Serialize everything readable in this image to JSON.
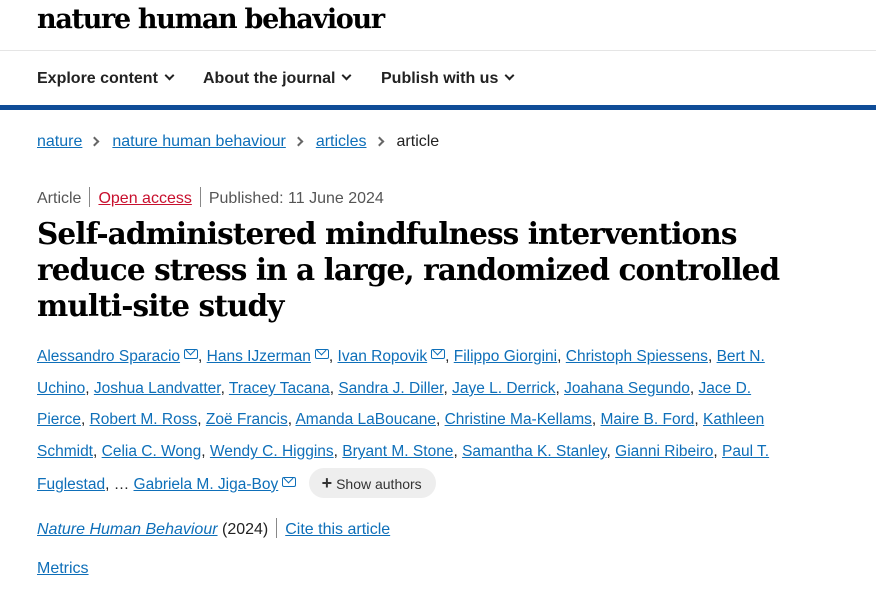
{
  "header": {
    "logo": "nature human behaviour"
  },
  "nav": [
    {
      "label": "Explore content"
    },
    {
      "label": "About the journal"
    },
    {
      "label": "Publish with us"
    }
  ],
  "breadcrumbs": {
    "items": [
      "nature",
      "nature human behaviour",
      "articles"
    ],
    "current": "article"
  },
  "article": {
    "type": "Article",
    "access": "Open access",
    "published": "Published: 11 June 2024",
    "title": "Self-administered mindfulness interventions reduce stress in a large, randomized controlled multi-site study",
    "authors": [
      "Alessandro Sparacio",
      "Hans IJzerman",
      "Ivan Ropovik",
      "Filippo Giorgini",
      "Christoph Spiessens",
      "Bert N. Uchino",
      "Joshua Landvatter",
      "Tracey Tacana",
      "Sandra J. Diller",
      "Jaye L. Derrick",
      "Joahana Segundo",
      "Jace D. Pierce",
      "Robert M. Ross",
      "Zoë Francis",
      "Amanda LaBoucane",
      "Christine Ma-Kellams",
      "Maire B. Ford",
      "Kathleen Schmidt",
      "Celia C. Wong",
      "Wendy C. Higgins",
      "Bryant M. Stone",
      "Samantha K. Stanley",
      "Gianni Ribeiro",
      "Paul T. Fuglestad"
    ],
    "ellipsis": "…",
    "last_author": "Gabriela M. Jiga-Boy",
    "show_authors": "Show authors",
    "journal": "Nature Human Behaviour",
    "year": "(2024)",
    "cite": "Cite this article",
    "metrics": "Metrics"
  },
  "colors": {
    "link": "#0e6fb9",
    "open_access": "#c8102e",
    "nav_bar": "#0f4c97"
  },
  "icons": [
    "chevron-down-icon",
    "chevron-right-icon",
    "mail-icon",
    "plus-icon"
  ]
}
